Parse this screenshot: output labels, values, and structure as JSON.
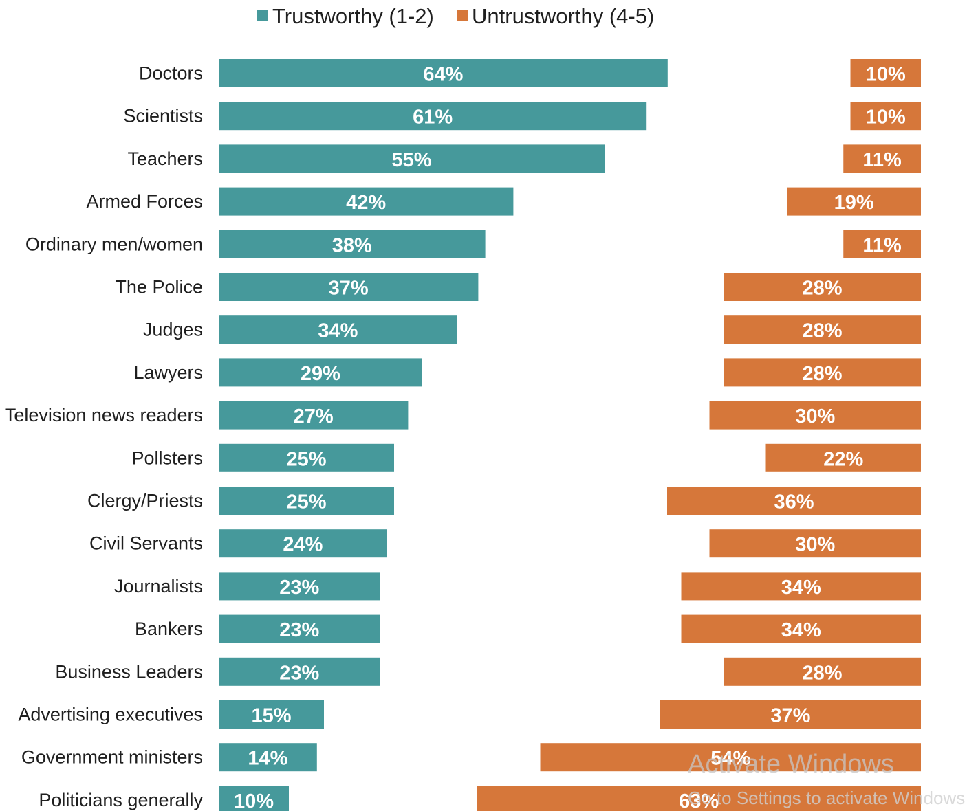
{
  "chart_data": {
    "type": "bar",
    "legend": [
      {
        "name": "Trustworthy (1-2)",
        "color": "#46999b"
      },
      {
        "name": "Untrustworthy (4-5)",
        "color": "#d6773a"
      }
    ],
    "legend_position": "top-center",
    "categories": [
      "Doctors",
      "Scientists",
      "Teachers",
      "Armed Forces",
      "Ordinary men/women",
      "The Police",
      "Judges",
      "Lawyers",
      "Television news readers",
      "Pollsters",
      "Clergy/Priests",
      "Civil Servants",
      "Journalists",
      "Bankers",
      "Business Leaders",
      "Advertising executives",
      "Government ministers",
      "Politicians generally"
    ],
    "series": [
      {
        "name": "Trustworthy (1-2)",
        "color": "#46999b",
        "values": [
          64,
          61,
          55,
          42,
          38,
          37,
          34,
          29,
          27,
          25,
          25,
          24,
          23,
          23,
          23,
          15,
          14,
          10
        ]
      },
      {
        "name": "Untrustworthy (4-5)",
        "color": "#d6773a",
        "values": [
          10,
          10,
          11,
          19,
          11,
          28,
          28,
          28,
          30,
          22,
          36,
          30,
          34,
          34,
          28,
          37,
          54,
          63
        ]
      }
    ],
    "value_suffix": "%",
    "grid": false
  },
  "watermark": {
    "title": "Activate Windows",
    "subtitle": "Go to Settings to activate Windows"
  }
}
